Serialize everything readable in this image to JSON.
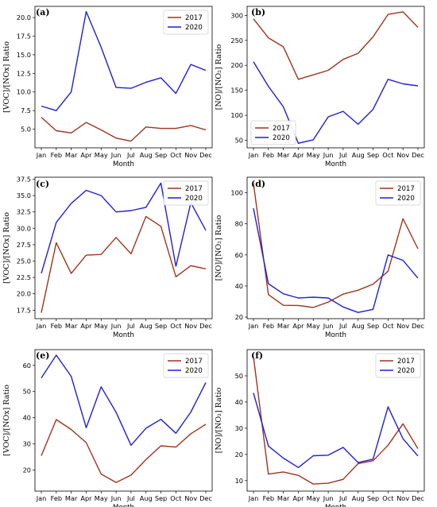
{
  "colors": {
    "series_2017": "#a0341e",
    "series_2020": "#1f1fd6"
  },
  "chart_data": [
    {
      "panel": "(a)",
      "type": "line",
      "categories": [
        "Jan",
        "Feb",
        "Mar",
        "Apr",
        "May",
        "Jun",
        "Jul",
        "Aug",
        "Sep",
        "Oct",
        "Nov",
        "Dec"
      ],
      "xlabel": "Month",
      "ylabel": "[VOC]/[NOx] Ratio",
      "ylim": [
        2.5,
        21.5
      ],
      "yticks": [
        "5.0",
        "7.5",
        "10.0",
        "12.5",
        "15.0",
        "17.5",
        "20.0"
      ],
      "legend_position": "top-right",
      "series": [
        {
          "name": "2017",
          "values": [
            6.6,
            4.8,
            4.5,
            5.9,
            4.9,
            3.8,
            3.4,
            5.3,
            5.1,
            5.1,
            5.5,
            4.9
          ]
        },
        {
          "name": "2020",
          "values": [
            8.1,
            7.5,
            10.0,
            20.8,
            16.0,
            10.6,
            10.5,
            11.3,
            11.9,
            9.8,
            13.7,
            12.9
          ]
        }
      ]
    },
    {
      "panel": "(b)",
      "type": "line",
      "categories": [
        "Jan",
        "Feb",
        "Mar",
        "Apr",
        "May",
        "Jun",
        "Jul",
        "Aug",
        "Sep",
        "Oct",
        "Nov",
        "Dec"
      ],
      "xlabel": "Month",
      "ylabel": "[NO]/[NO₂] Ratio",
      "ylim": [
        35,
        318
      ],
      "yticks": [
        "50",
        "100",
        "150",
        "200",
        "250",
        "300"
      ],
      "legend_position": "bottom-left",
      "series": [
        {
          "name": "2017",
          "values": [
            293,
            255,
            237,
            172,
            181,
            190,
            212,
            224,
            257,
            302,
            307,
            276
          ]
        },
        {
          "name": "2020",
          "values": [
            207,
            158,
            117,
            44,
            51,
            97,
            108,
            82,
            112,
            172,
            163,
            159
          ]
        }
      ]
    },
    {
      "panel": "(c)",
      "type": "line",
      "categories": [
        "Jan",
        "Feb",
        "Mar",
        "Apr",
        "May",
        "Jun",
        "Jul",
        "Aug",
        "Sep",
        "Oct",
        "Nov",
        "Dec"
      ],
      "xlabel": "Month",
      "ylabel": "[VOC]/[NOx] Ratio",
      "ylim": [
        16.2,
        37.8
      ],
      "yticks": [
        "17.5",
        "20.0",
        "22.5",
        "25.0",
        "27.5",
        "30.0",
        "32.5",
        "35.0",
        "37.5"
      ],
      "legend_position": "top-right",
      "series": [
        {
          "name": "2017",
          "values": [
            17.1,
            27.8,
            23.1,
            25.9,
            26.0,
            28.6,
            26.1,
            31.8,
            30.3,
            22.6,
            24.3,
            23.8
          ]
        },
        {
          "name": "2020",
          "values": [
            23.1,
            30.9,
            33.8,
            35.8,
            35.0,
            32.5,
            32.7,
            33.2,
            36.9,
            24.2,
            33.9,
            29.7
          ]
        }
      ]
    },
    {
      "panel": "(d)",
      "type": "line",
      "categories": [
        "Jan",
        "Feb",
        "Mar",
        "Apr",
        "May",
        "Jun",
        "Jul",
        "Aug",
        "Sep",
        "Oct",
        "Nov",
        "Dec"
      ],
      "xlabel": "Month",
      "ylabel": "[NO]/[NO₂] Ratio",
      "ylim": [
        19,
        110
      ],
      "yticks": [
        "20",
        "40",
        "60",
        "80",
        "100"
      ],
      "legend_position": "top-right",
      "series": [
        {
          "name": "2017",
          "values": [
            106,
            34.5,
            27.6,
            27.5,
            26.2,
            29.7,
            34.8,
            37.3,
            41.2,
            49.5,
            83.3,
            64.0
          ]
        },
        {
          "name": "2020",
          "values": [
            90.0,
            41.5,
            35.0,
            32.3,
            32.8,
            32.3,
            26.5,
            23.0,
            25.0,
            60.0,
            56.5,
            45.0
          ]
        }
      ]
    },
    {
      "panel": "(e)",
      "type": "line",
      "categories": [
        "Jan",
        "Feb",
        "Mar",
        "Apr",
        "May",
        "Jun",
        "Jul",
        "Aug",
        "Sep",
        "Oct",
        "Nov",
        "Dec"
      ],
      "xlabel": "Month",
      "ylabel": "[VOC]/[NOx] Ratio",
      "ylim": [
        12,
        66
      ],
      "yticks": [
        "20",
        "30",
        "40",
        "50",
        "60"
      ],
      "legend_position": "top-right",
      "series": [
        {
          "name": "2017",
          "values": [
            25.5,
            39.3,
            35.5,
            30.5,
            18.5,
            15.3,
            18.1,
            24.0,
            29.3,
            28.8,
            33.9,
            37.5
          ]
        },
        {
          "name": "2020",
          "values": [
            55.2,
            63.9,
            55.8,
            36.2,
            51.8,
            42.1,
            29.5,
            36.0,
            39.4,
            34.1,
            42.2,
            53.4
          ]
        }
      ]
    },
    {
      "panel": "(f)",
      "type": "line",
      "categories": [
        "Jan",
        "Feb",
        "Mar",
        "Apr",
        "May",
        "Jun",
        "Jul",
        "Aug",
        "Sep",
        "Oct",
        "Nov",
        "Dec"
      ],
      "xlabel": "Month",
      "ylabel": "[NO]/[NO₂] Ratio",
      "ylim": [
        6,
        60
      ],
      "yticks": [
        "10",
        "20",
        "30",
        "40",
        "50"
      ],
      "legend_position": "top-right",
      "series": [
        {
          "name": "2017",
          "values": [
            57.3,
            12.5,
            13.3,
            12.0,
            8.7,
            9.0,
            10.5,
            16.5,
            17.6,
            23.5,
            31.7,
            22.2
          ]
        },
        {
          "name": "2020",
          "values": [
            43.5,
            23.2,
            18.6,
            15.0,
            19.5,
            19.7,
            22.7,
            16.9,
            18.2,
            38.2,
            26.0,
            19.4
          ]
        }
      ]
    }
  ]
}
